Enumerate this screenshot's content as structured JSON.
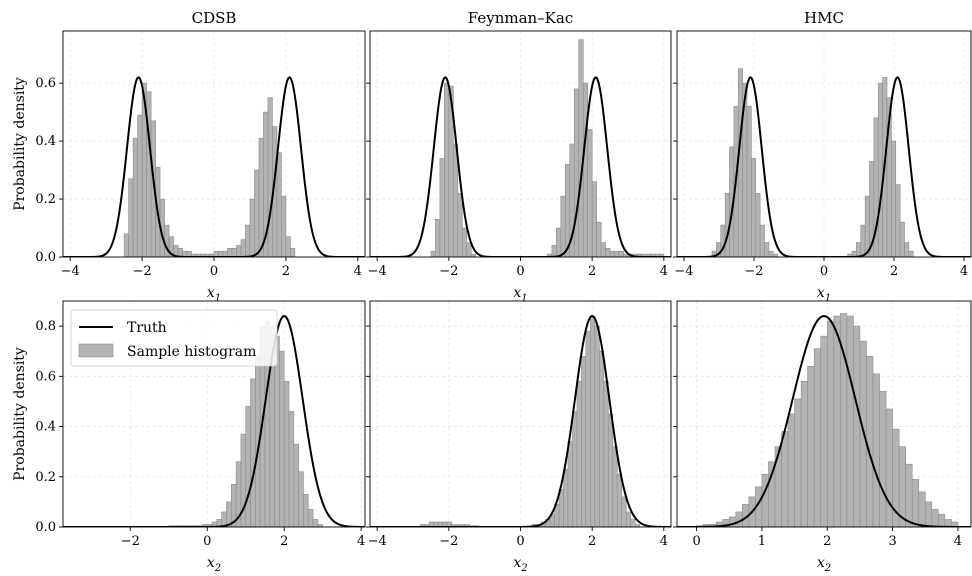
{
  "figure": {
    "ylabel": "Probability density"
  },
  "legend": {
    "truth_label": "Truth",
    "hist_label": "Sample histogram",
    "placement": "upper-left of bottom-left panel"
  },
  "colors": {
    "truth_line": "#000000",
    "histogram_fill": "#b3b3b3",
    "histogram_edge": "#8c8c8c",
    "grid": "#e6e6e6"
  },
  "chart_data": [
    {
      "type": "histogram-with-line",
      "title": "CDSB",
      "xlabel": "x",
      "xsub": "1",
      "ylabel": "Probability density",
      "xlim": [
        -4.2,
        4.2
      ],
      "ylim": [
        0,
        0.78
      ],
      "xticks": [
        -4,
        -2,
        0,
        2,
        4
      ],
      "yticks": [
        0.0,
        0.2,
        0.4,
        0.6
      ],
      "ytick_labels": [
        "0.0",
        "0.2",
        "0.4",
        "0.6"
      ],
      "grid": true,
      "truth": {
        "name": "Truth",
        "kind": "bimodal",
        "mu": 2.1,
        "sigma": 0.32,
        "peak": 0.62
      },
      "histogram": {
        "name": "Sample histogram",
        "start": -2.5,
        "width": 0.125,
        "heights": [
          0.08,
          0.27,
          0.41,
          0.49,
          0.6,
          0.57,
          0.47,
          0.31,
          0.2,
          0.11,
          0.07,
          0.04,
          0.03,
          0.02,
          0.02,
          0.01,
          0.01,
          0.01,
          0.01,
          0.01,
          0.02,
          0.02,
          0.02,
          0.03,
          0.03,
          0.04,
          0.06,
          0.11,
          0.2,
          0.3,
          0.41,
          0.5,
          0.55,
          0.45,
          0.36,
          0.21,
          0.07,
          0.03
        ]
      }
    },
    {
      "type": "histogram-with-line",
      "title": "Feynman–Kac",
      "xlabel": "x",
      "xsub": "1",
      "xlim": [
        -4.2,
        4.2
      ],
      "ylim": [
        0,
        0.78
      ],
      "xticks": [
        -4,
        -2,
        0,
        2,
        4
      ],
      "grid": true,
      "truth": {
        "name": "Truth",
        "kind": "bimodal",
        "mu": 2.1,
        "sigma": 0.32,
        "peak": 0.62
      },
      "histogram": {
        "name": "Sample histogram",
        "start": -2.5,
        "width": 0.125,
        "heights": [
          0.02,
          0.13,
          0.34,
          0.6,
          0.59,
          0.39,
          0.22,
          0.1,
          0.05,
          0.01,
          0,
          0,
          0,
          0,
          0,
          0,
          0,
          0,
          0,
          0,
          0,
          0,
          0,
          0,
          0,
          0,
          0.01,
          0.04,
          0.1,
          0.21,
          0.32,
          0.39,
          0.58,
          0.75,
          0.6,
          0.44,
          0.26,
          0.12,
          0.05,
          0.03,
          0.02,
          0.02,
          0.02,
          0.01,
          0.01,
          0.01,
          0.01,
          0.01,
          0.01,
          0.01,
          0.01,
          0.01
        ]
      }
    },
    {
      "type": "histogram-with-line",
      "title": "HMC",
      "xlabel": "x",
      "xsub": "1",
      "xlim": [
        -4.2,
        4.2
      ],
      "ylim": [
        0,
        0.78
      ],
      "xticks": [
        -4,
        -2,
        0,
        2,
        4
      ],
      "grid": true,
      "truth": {
        "name": "Truth",
        "kind": "bimodal",
        "mu": 2.1,
        "sigma": 0.32,
        "peak": 0.62
      },
      "histogram": {
        "name": "Sample histogram",
        "start": -3.2,
        "width": 0.125,
        "heights": [
          0.02,
          0.05,
          0.11,
          0.22,
          0.38,
          0.52,
          0.65,
          0.6,
          0.52,
          0.34,
          0.22,
          0.11,
          0.05,
          0.02,
          0.01,
          0,
          0,
          0,
          0,
          0,
          0,
          0,
          0,
          0,
          0,
          0,
          0,
          0,
          0,
          0,
          0,
          0.01,
          0.02,
          0.05,
          0.11,
          0.21,
          0.33,
          0.48,
          0.6,
          0.62,
          0.55,
          0.4,
          0.25,
          0.12,
          0.05,
          0.02
        ]
      }
    },
    {
      "type": "histogram-with-line",
      "title": "",
      "xlabel": "x",
      "xsub": "2",
      "ylabel": "Probability density",
      "xlim": [
        -3.75,
        4.1
      ],
      "ylim": [
        0,
        0.9
      ],
      "xticks": [
        -2,
        0,
        2,
        4
      ],
      "yticks": [
        0.0,
        0.2,
        0.4,
        0.6,
        0.8
      ],
      "ytick_labels": [
        "0.0",
        "0.2",
        "0.4",
        "0.6",
        "0.8"
      ],
      "grid": true,
      "truth": {
        "name": "Truth",
        "kind": "gaussian",
        "mu": 2.0,
        "sigma": 0.48,
        "peak": 0.84
      },
      "histogram": {
        "name": "Sample histogram",
        "start": -1.0,
        "width": 0.125,
        "heights": [
          0.005,
          0.005,
          0.005,
          0.005,
          0.005,
          0.005,
          0.005,
          0.01,
          0.01,
          0.02,
          0.03,
          0.06,
          0.1,
          0.17,
          0.26,
          0.37,
          0.48,
          0.59,
          0.68,
          0.8,
          0.82,
          0.8,
          0.76,
          0.7,
          0.58,
          0.46,
          0.33,
          0.22,
          0.13,
          0.07,
          0.03,
          0.01
        ]
      }
    },
    {
      "type": "histogram-with-line",
      "title": "",
      "xlabel": "x",
      "xsub": "2",
      "xlim": [
        -4.2,
        4.2
      ],
      "ylim": [
        0,
        0.9
      ],
      "xticks": [
        -4,
        -2,
        0,
        2,
        4
      ],
      "grid": true,
      "truth": {
        "name": "Truth",
        "kind": "gaussian",
        "mu": 2.0,
        "sigma": 0.48,
        "peak": 0.84
      },
      "histogram": {
        "name": "Sample histogram",
        "start": -2.8,
        "width": 0.125,
        "heights": [
          0.01,
          0.01,
          0.02,
          0.02,
          0.02,
          0.02,
          0.02,
          0.01,
          0.01,
          0.01,
          0.01,
          0.005,
          0.005,
          0,
          0,
          0,
          0,
          0,
          0,
          0,
          0,
          0,
          0,
          0,
          0.005,
          0.01,
          0.01,
          0.02,
          0.03,
          0.05,
          0.09,
          0.15,
          0.23,
          0.34,
          0.46,
          0.58,
          0.68,
          0.78,
          0.84,
          0.8,
          0.7,
          0.58,
          0.45,
          0.32,
          0.21,
          0.12,
          0.06,
          0.03,
          0.01
        ]
      }
    },
    {
      "type": "histogram-with-line",
      "title": "",
      "xlabel": "x",
      "xsub": "2",
      "xlim": [
        -0.3,
        4.2
      ],
      "ylim": [
        0,
        0.9
      ],
      "xticks": [
        0,
        1,
        2,
        3,
        4
      ],
      "grid": true,
      "truth": {
        "name": "Truth",
        "kind": "gaussian",
        "mu": 1.95,
        "sigma": 0.48,
        "peak": 0.84
      },
      "histogram": {
        "name": "Sample histogram",
        "start": 0.0,
        "width": 0.1,
        "heights": [
          0.005,
          0.01,
          0.01,
          0.02,
          0.03,
          0.04,
          0.06,
          0.09,
          0.12,
          0.16,
          0.21,
          0.26,
          0.32,
          0.38,
          0.45,
          0.51,
          0.58,
          0.64,
          0.71,
          0.76,
          0.82,
          0.84,
          0.85,
          0.84,
          0.8,
          0.74,
          0.68,
          0.61,
          0.54,
          0.47,
          0.39,
          0.32,
          0.25,
          0.19,
          0.14,
          0.1,
          0.07,
          0.05,
          0.03,
          0.02
        ]
      }
    }
  ]
}
